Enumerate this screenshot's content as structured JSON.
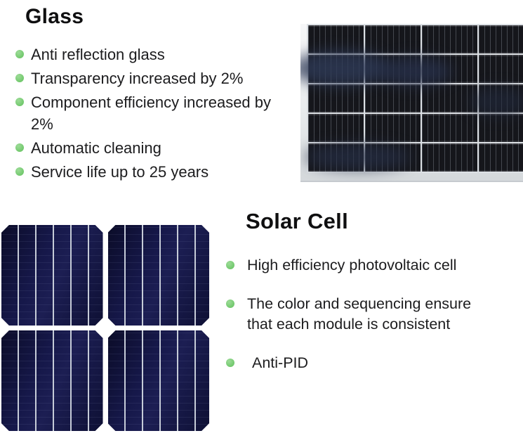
{
  "glass_section": {
    "title": "Glass",
    "items": [
      "Anti reflection glass",
      "Transparency increased by 2%",
      "Component efficiency increased by 2%",
      "Automatic cleaning",
      "Service life up to 25 years"
    ]
  },
  "solar_cell_section": {
    "title": "Solar Cell",
    "items": [
      "High efficiency photovoltaic cell",
      "The color and sequencing ensure that each module is consistent",
      "Anti-PID"
    ]
  },
  "images": {
    "panel_photo": {
      "description": "close-up photo of a framed monocrystalline solar panel",
      "grid_rows": 5,
      "grid_columns": 4
    },
    "cells_photo": {
      "description": "photo of four dark navy photovoltaic cells in a 2x2 layout",
      "grid_rows": 2,
      "grid_columns": 2
    }
  },
  "colors": {
    "bullet_green": "#6fc76a",
    "heading_text": "#0f0f10",
    "body_text": "#1c1c1e",
    "panel_cell_dark": "#15161b",
    "panel_frame_silver": "#e8ebed",
    "cell_navy": "#14163f",
    "background": "#ffffff"
  }
}
